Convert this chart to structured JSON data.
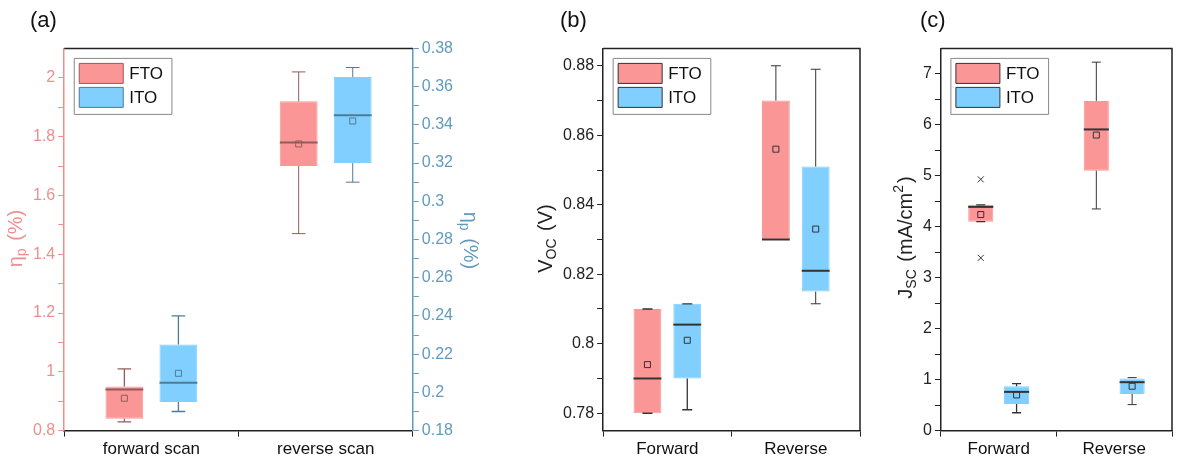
{
  "chart_data": [
    {
      "type": "box",
      "title": "(a)",
      "ylabel": "η$_{p}$ (%)",
      "y2label": "η$_{p}$ (%)",
      "categories": [
        "forward scan",
        "reverse scan"
      ],
      "series": [
        {
          "name": "FTO",
          "color": "#fa9696",
          "boxes": [
            {
              "low": 0.83,
              "q1": 0.84,
              "median": 0.94,
              "q3": 0.95,
              "high": 1.01,
              "mean": 0.91
            },
            {
              "low": 1.47,
              "q1": 1.7,
              "median": 1.78,
              "q3": 1.92,
              "high": 2.02,
              "mean": 1.775
            }
          ]
        },
        {
          "name": "ITO",
          "color": "#80cfff",
          "axis": "y2",
          "boxes": [
            {
              "low": 0.19,
              "q1": 0.195,
              "median": 0.205,
              "q3": 0.225,
              "high": 0.24,
              "mean": 0.21
            },
            {
              "low": 0.31,
              "q1": 0.32,
              "median": 0.345,
              "q3": 0.365,
              "high": 0.37,
              "mean": 0.342
            }
          ]
        }
      ],
      "ylim": [
        0.8,
        2.1
      ],
      "yticks": [
        0.8,
        {
          "value": 0.9,
          "label": null
        },
        1.0,
        {
          "value": 1.1,
          "label": null
        },
        1.2,
        {
          "value": 1.3,
          "label": null
        },
        1.4,
        {
          "value": 1.5,
          "label": null
        },
        1.6,
        {
          "value": 1.7,
          "label": null
        },
        1.8,
        {
          "value": 1.9,
          "label": null
        },
        2.0
      ],
      "y2lim": [
        0.18,
        0.38
      ],
      "y2ticks": [
        0.18,
        {
          "value": 0.19,
          "label": null
        },
        0.2,
        {
          "value": 0.21,
          "label": null
        },
        0.22,
        {
          "value": 0.23,
          "label": null
        },
        0.24,
        {
          "value": 0.25,
          "label": null
        },
        0.26,
        {
          "value": 0.27,
          "label": null
        },
        0.28,
        {
          "value": 0.29,
          "label": null
        },
        0.3,
        {
          "value": 0.31,
          "label": null
        },
        0.32,
        {
          "value": 0.33,
          "label": null
        },
        0.34,
        {
          "value": 0.35,
          "label": null
        },
        0.36,
        {
          "value": 0.37,
          "label": null
        },
        0.38
      ],
      "legend": "top left",
      "marker": "square"
    },
    {
      "type": "box",
      "title": "(b)",
      "ylabel": "V$_{OC}$ (V)",
      "categories": [
        "Forward",
        "Reverse"
      ],
      "series": [
        {
          "name": "FTO",
          "color": "#fa9696",
          "boxes": [
            {
              "low": 0.78,
              "q1": 0.78,
              "median": 0.79,
              "q3": 0.81,
              "high": 0.81,
              "mean": 0.794
            },
            {
              "low": 0.83,
              "q1": 0.83,
              "median": 0.83,
              "q3": 0.87,
              "high": 0.88,
              "mean": 0.856
            }
          ]
        },
        {
          "name": "ITO",
          "color": "#80cfff",
          "boxes": [
            {
              "low": 0.781,
              "q1": 0.79,
              "median": 0.8055,
              "q3": 0.8115,
              "high": 0.8115,
              "mean": 0.801
            },
            {
              "low": 0.8115,
              "q1": 0.815,
              "median": 0.821,
              "q3": 0.851,
              "high": 0.879,
              "mean": 0.833
            }
          ]
        }
      ],
      "ylim": [
        0.775,
        0.885
      ],
      "yticks": [
        0.78,
        {
          "value": 0.79,
          "label": null
        },
        0.8,
        {
          "value": 0.81,
          "label": null
        },
        0.82,
        {
          "value": 0.83,
          "label": null
        },
        0.84,
        {
          "value": 0.85,
          "label": null
        },
        0.86,
        {
          "value": 0.87,
          "label": null
        },
        0.88
      ],
      "legend": "top left",
      "marker": "square"
    },
    {
      "type": "box",
      "title": "(c)",
      "ylabel": "J$_{SC}$ (mA/cm$^{2}$)",
      "categories": [
        "Forward",
        "Reverse"
      ],
      "series": [
        {
          "name": "FTO",
          "color": "#fa9696",
          "boxes": [
            {
              "low": 4.1,
              "q1": 4.1,
              "median": 4.39,
              "q3": 4.43,
              "high": 4.43,
              "mean": 4.24,
              "outliers": [
                4.93,
                3.39
              ]
            },
            {
              "low": 4.35,
              "q1": 5.1,
              "median": 5.91,
              "q3": 6.47,
              "high": 7.23,
              "mean": 5.8
            }
          ]
        },
        {
          "name": "ITO",
          "color": "#80cfff",
          "boxes": [
            {
              "low": 0.35,
              "q1": 0.52,
              "median": 0.76,
              "q3": 0.87,
              "high": 0.92,
              "mean": 0.7
            },
            {
              "low": 0.51,
              "q1": 0.72,
              "median": 0.95,
              "q3": 1.02,
              "high": 1.04,
              "mean": 0.87
            }
          ]
        }
      ],
      "ylim": [
        0,
        7.5
      ],
      "yticks": [
        0,
        {
          "value": 0.5,
          "label": null
        },
        1,
        {
          "value": 1.5,
          "label": null
        },
        2,
        {
          "value": 2.5,
          "label": null
        },
        3,
        {
          "value": 3.5,
          "label": null
        },
        4,
        {
          "value": 4.5,
          "label": null
        },
        5,
        {
          "value": 5.5,
          "label": null
        },
        6,
        {
          "value": 6.5,
          "label": null
        },
        7
      ],
      "legend": "top left",
      "marker": "square"
    }
  ]
}
